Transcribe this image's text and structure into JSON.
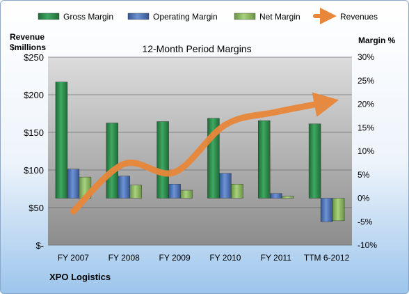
{
  "chart_data": {
    "type": "bar",
    "title": "12-Month Period Margins",
    "company": "XPO Logistics",
    "categories": [
      "FY 2007",
      "FY 2008",
      "FY 2009",
      "FY 2010",
      "FY 2011",
      "TTM 6-2012"
    ],
    "series": [
      {
        "name": "Gross Margin",
        "axis": "right",
        "unit": "percent",
        "color": "#2e8b4a",
        "values": [
          24.7,
          16.0,
          16.3,
          17.0,
          16.5,
          15.8
        ]
      },
      {
        "name": "Operating Margin",
        "axis": "right",
        "unit": "percent",
        "color": "#4f76bd",
        "values": [
          6.2,
          4.7,
          3.0,
          5.3,
          1.0,
          -5.0
        ]
      },
      {
        "name": "Net Margin",
        "axis": "right",
        "unit": "percent",
        "color": "#8db95e",
        "values": [
          4.5,
          2.8,
          1.7,
          3.0,
          0.4,
          -4.8
        ]
      },
      {
        "name": "Revenues",
        "axis": "left",
        "unit": "$millions",
        "color": "#e8873a",
        "chart_type": "line",
        "values": [
          45,
          108,
          97,
          160,
          177,
          190
        ]
      }
    ],
    "y_left": {
      "label_line1": "Revenue",
      "label_line2": "$millions",
      "ylim": [
        0,
        250
      ],
      "ticks": [
        "$-",
        "$50",
        "$100",
        "$150",
        "$200",
        "$250"
      ]
    },
    "y_right": {
      "label": "Margin %",
      "ylim": [
        -10,
        30
      ],
      "ticks": [
        "-10%",
        "-5%",
        "0%",
        "5%",
        "10%",
        "15%",
        "20%",
        "25%",
        "30%"
      ]
    },
    "legend_position": "top",
    "grid": true
  }
}
